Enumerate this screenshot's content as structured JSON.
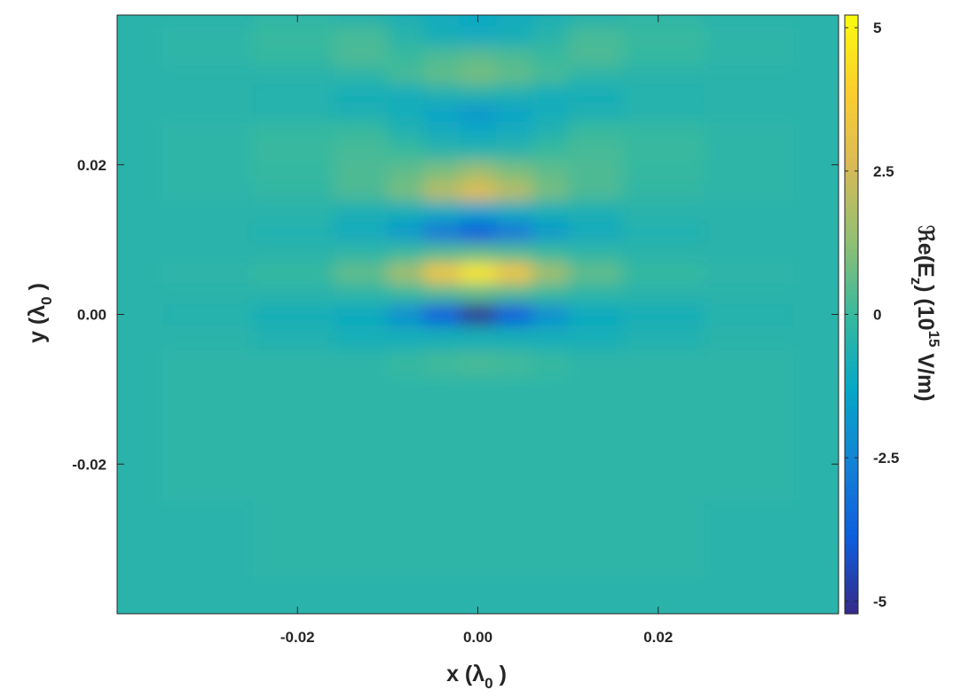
{
  "chart_data": {
    "type": "heatmap",
    "colormap": "parula",
    "x_label": [
      "x (λ",
      "0",
      " )"
    ],
    "y_label": [
      "y (λ",
      "0",
      " )"
    ],
    "colorbar_label": [
      "ℜe(E",
      "z",
      ") (10",
      "15",
      " V/m)"
    ],
    "xlim": [
      -0.04,
      0.04
    ],
    "ylim": [
      -0.04,
      0.04
    ],
    "xticks": [
      -0.02,
      {
        "value": 0,
        "label": "0.00"
      },
      0.02
    ],
    "yticks": [
      -0.02,
      {
        "value": 0,
        "label": "0.00"
      },
      0.02
    ],
    "clim": [
      -5.22,
      5.22
    ],
    "cticks": [
      -5,
      -2.5,
      0,
      2.5,
      5
    ],
    "x": [
      -0.04,
      -0.03,
      -0.02,
      -0.012,
      -0.008,
      -0.004,
      0,
      0.004,
      0.008,
      0.012,
      0.02,
      0.03,
      0.04
    ],
    "y": [
      0.04,
      0.037,
      0.0345,
      0.032,
      0.0295,
      0.027,
      0.0245,
      0.022,
      0.019,
      0.0165,
      0.0138,
      0.011,
      0.0083,
      0.0055,
      0.0028,
      0,
      -0.003,
      -0.0065,
      -0.01,
      -0.02,
      -0.03,
      -0.04
    ],
    "z": [
      [
        -0.4,
        -0.4,
        -0.3,
        -0.5,
        -0.7,
        -1.0,
        -1.2,
        -1.0,
        -0.7,
        -0.5,
        -0.3,
        -0.4,
        -0.4
      ],
      [
        -0.4,
        -0.3,
        0.0,
        0.2,
        -0.4,
        -0.8,
        -1.0,
        -0.8,
        -0.4,
        0.2,
        0.0,
        -0.3,
        -0.4
      ],
      [
        -0.4,
        -0.3,
        -0.1,
        0.3,
        0.0,
        0.3,
        0.5,
        0.3,
        0.0,
        0.3,
        -0.1,
        -0.3,
        -0.4
      ],
      [
        -0.4,
        -0.4,
        -0.4,
        -0.3,
        0.2,
        0.6,
        0.9,
        0.6,
        0.2,
        -0.3,
        -0.4,
        -0.4,
        -0.4
      ],
      [
        -0.4,
        -0.4,
        -0.5,
        -0.8,
        -0.9,
        -0.6,
        -0.5,
        -0.6,
        -0.9,
        -0.8,
        -0.5,
        -0.4,
        -0.4
      ],
      [
        -0.4,
        -0.4,
        -0.5,
        -0.7,
        -0.9,
        -1.4,
        -1.8,
        -1.4,
        -0.9,
        -0.7,
        -0.5,
        -0.4,
        -0.4
      ],
      [
        -0.4,
        -0.3,
        -0.1,
        0.0,
        -0.6,
        -1.0,
        -1.2,
        -1.0,
        -0.6,
        0.0,
        -0.1,
        -0.3,
        -0.4
      ],
      [
        -0.4,
        -0.3,
        0.0,
        0.2,
        0.0,
        -0.4,
        -0.5,
        -0.4,
        0.0,
        0.2,
        0.0,
        -0.3,
        -0.4
      ],
      [
        -0.4,
        -0.3,
        -0.1,
        0.3,
        0.6,
        1.0,
        1.5,
        1.0,
        0.6,
        0.3,
        -0.1,
        -0.3,
        -0.4
      ],
      [
        -0.4,
        -0.3,
        -0.2,
        0.3,
        0.9,
        2.0,
        2.8,
        2.0,
        0.9,
        0.3,
        -0.2,
        -0.3,
        -0.4
      ],
      [
        -0.4,
        -0.4,
        -0.4,
        -0.7,
        -0.8,
        -1.1,
        -1.5,
        -1.1,
        -0.8,
        -0.7,
        -0.4,
        -0.4,
        -0.4
      ],
      [
        -0.4,
        -0.4,
        -0.6,
        -1.0,
        -1.7,
        -2.9,
        -3.8,
        -2.9,
        -1.7,
        -1.0,
        -0.6,
        -0.4,
        -0.4
      ],
      [
        -0.4,
        -0.4,
        -0.4,
        -0.3,
        0.0,
        0.3,
        0.5,
        0.3,
        0.0,
        -0.3,
        -0.4,
        -0.4,
        -0.4
      ],
      [
        -0.4,
        -0.3,
        -0.1,
        0.6,
        1.6,
        3.4,
        4.6,
        3.4,
        1.6,
        0.6,
        -0.1,
        -0.3,
        -0.4
      ],
      [
        -0.4,
        -0.4,
        -0.4,
        -0.3,
        0.0,
        0.3,
        0.5,
        0.3,
        0.0,
        -0.3,
        -0.4,
        -0.4,
        -0.4
      ],
      [
        -0.4,
        -0.5,
        -0.8,
        -1.1,
        -2.1,
        -3.8,
        -4.9,
        -3.8,
        -2.1,
        -1.1,
        -0.8,
        -0.5,
        -0.4
      ],
      [
        -0.4,
        -0.4,
        -0.6,
        -0.8,
        -0.9,
        -0.8,
        -0.8,
        -0.8,
        -0.9,
        -0.8,
        -0.6,
        -0.4,
        -0.4
      ],
      [
        -0.4,
        -0.3,
        -0.3,
        -0.3,
        -0.1,
        0.1,
        0.2,
        0.1,
        -0.1,
        -0.3,
        -0.3,
        -0.3,
        -0.4
      ],
      [
        -0.4,
        -0.3,
        -0.3,
        -0.3,
        -0.3,
        -0.3,
        -0.3,
        -0.3,
        -0.3,
        -0.3,
        -0.3,
        -0.3,
        -0.4
      ],
      [
        -0.4,
        -0.3,
        -0.3,
        -0.3,
        -0.3,
        -0.3,
        -0.3,
        -0.3,
        -0.3,
        -0.3,
        -0.3,
        -0.3,
        -0.4
      ],
      [
        -0.4,
        -0.4,
        -0.3,
        -0.3,
        -0.3,
        -0.3,
        -0.3,
        -0.3,
        -0.3,
        -0.3,
        -0.3,
        -0.4,
        -0.4
      ],
      [
        -0.4,
        -0.4,
        -0.4,
        -0.4,
        -0.4,
        -0.4,
        -0.4,
        -0.4,
        -0.4,
        -0.4,
        -0.4,
        -0.4,
        -0.4
      ]
    ]
  }
}
